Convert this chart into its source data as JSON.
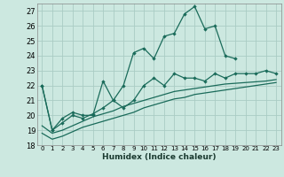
{
  "xlabel": "Humidex (Indice chaleur)",
  "bg_color": "#cce8e0",
  "grid_color": "#aaccc4",
  "line_color": "#1a6b5a",
  "xlim": [
    -0.5,
    23.5
  ],
  "ylim": [
    18,
    27.5
  ],
  "yticks": [
    18,
    19,
    20,
    21,
    22,
    23,
    24,
    25,
    26,
    27
  ],
  "xticks": [
    0,
    1,
    2,
    3,
    4,
    5,
    6,
    7,
    8,
    9,
    10,
    11,
    12,
    13,
    14,
    15,
    16,
    17,
    18,
    19,
    20,
    21,
    22,
    23
  ],
  "s1_x": [
    0,
    1,
    2,
    3,
    4,
    5,
    6,
    7,
    8,
    9,
    10,
    11,
    12,
    13,
    14,
    15,
    16,
    17,
    18,
    19
  ],
  "s1_y": [
    22.0,
    19.0,
    19.8,
    20.2,
    20.0,
    20.0,
    22.3,
    21.0,
    22.0,
    24.2,
    24.5,
    23.8,
    25.3,
    25.5,
    26.8,
    27.3,
    25.8,
    26.0,
    24.0,
    23.8
  ],
  "s2_x": [
    0,
    1,
    2,
    3,
    4,
    5,
    6,
    7,
    8,
    9,
    10,
    11,
    12,
    13,
    14,
    15,
    16,
    17,
    18,
    19,
    20,
    21,
    22,
    23
  ],
  "s2_y": [
    22.0,
    19.0,
    19.5,
    20.0,
    19.8,
    20.1,
    20.5,
    21.0,
    20.5,
    21.0,
    22.0,
    22.5,
    22.0,
    22.8,
    22.5,
    22.5,
    22.3,
    22.8,
    22.5,
    22.8,
    22.8,
    22.8,
    23.0,
    22.8
  ],
  "s3_x": [
    0,
    1,
    2,
    3,
    4,
    5,
    6,
    7,
    8,
    9,
    10,
    11,
    12,
    13,
    14,
    15,
    16,
    17,
    18,
    19,
    20,
    21,
    22,
    23
  ],
  "s3_y": [
    19.3,
    18.8,
    19.0,
    19.3,
    19.6,
    19.9,
    20.1,
    20.3,
    20.6,
    20.8,
    21.0,
    21.2,
    21.4,
    21.6,
    21.7,
    21.8,
    21.9,
    22.0,
    22.1,
    22.15,
    22.2,
    22.25,
    22.3,
    22.4
  ],
  "s4_x": [
    0,
    1,
    2,
    3,
    4,
    5,
    6,
    7,
    8,
    9,
    10,
    11,
    12,
    13,
    14,
    15,
    16,
    17,
    18,
    19,
    20,
    21,
    22,
    23
  ],
  "s4_y": [
    18.8,
    18.4,
    18.6,
    18.9,
    19.2,
    19.4,
    19.6,
    19.8,
    20.0,
    20.2,
    20.5,
    20.7,
    20.9,
    21.1,
    21.2,
    21.4,
    21.5,
    21.6,
    21.7,
    21.8,
    21.9,
    22.0,
    22.1,
    22.2
  ]
}
